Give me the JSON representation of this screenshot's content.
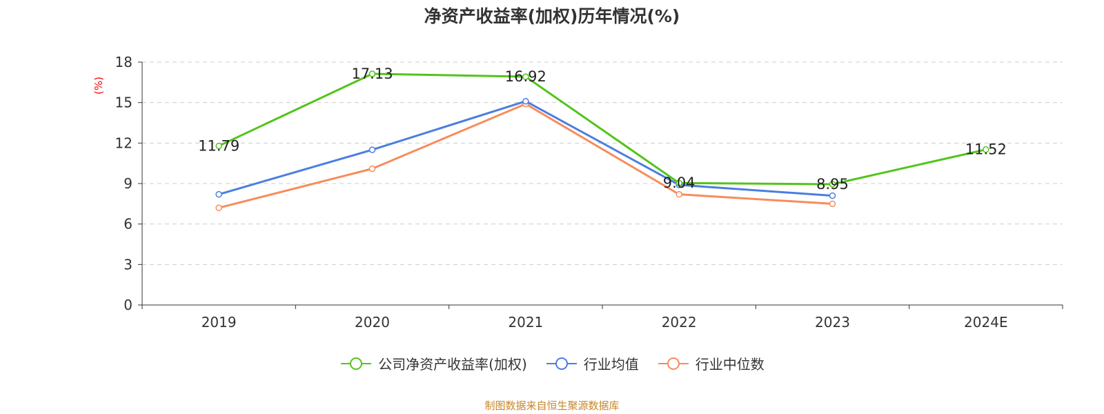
{
  "chart_data": {
    "type": "line",
    "title": "净资产收益率(加权)历年情况(%)",
    "ylabel": "(%)",
    "xlabel": "",
    "categories": [
      "2019",
      "2020",
      "2021",
      "2022",
      "2023",
      "2024E"
    ],
    "ylim": [
      0,
      18
    ],
    "yticks": [
      0,
      3,
      6,
      9,
      12,
      15,
      18
    ],
    "grid": true,
    "legend_position": "bottom",
    "series": [
      {
        "name": "公司净资产收益率(加权)",
        "color": "#52c41a",
        "values": [
          11.79,
          17.13,
          16.92,
          9.04,
          8.95,
          11.52
        ],
        "show_labels": true
      },
      {
        "name": "行业均值",
        "color": "#4a7ee0",
        "values": [
          8.2,
          11.5,
          15.1,
          8.9,
          8.1,
          null
        ],
        "show_labels": false
      },
      {
        "name": "行业中位数",
        "color": "#f78c5a",
        "values": [
          7.2,
          10.1,
          14.9,
          8.2,
          7.5,
          null
        ],
        "show_labels": false
      }
    ]
  },
  "source": "制图数据来自恒生聚源数据库"
}
